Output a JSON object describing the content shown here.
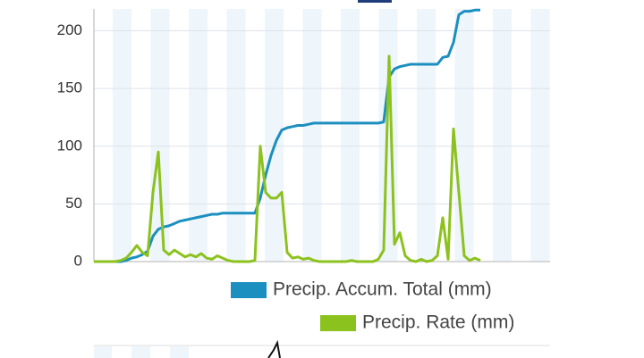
{
  "chart_data": {
    "type": "line",
    "series": [
      {
        "name": "Precip. Accum. Total (mm)",
        "color": "#1b8fc0",
        "values": [
          0,
          0,
          0,
          0,
          0,
          0,
          1,
          3,
          4,
          6,
          9,
          22,
          28,
          30,
          31,
          33,
          35,
          36,
          37,
          38,
          39,
          40,
          41,
          41,
          42,
          42,
          42,
          42,
          42,
          42,
          42,
          55,
          75,
          92,
          105,
          114,
          116,
          117,
          118,
          118,
          119,
          120,
          120,
          120,
          120,
          120,
          120,
          120,
          120,
          120,
          120,
          120,
          120,
          120,
          121,
          160,
          167,
          169,
          170,
          171,
          171,
          171,
          171,
          171,
          171,
          177,
          178,
          190,
          214,
          217,
          217,
          218,
          218,
          null,
          null,
          null,
          null,
          null,
          null,
          null,
          null,
          null,
          null,
          null,
          null,
          null
        ]
      },
      {
        "name": "Precip. Rate (mm)",
        "color": "#8cc21e",
        "values": [
          0,
          0,
          0,
          0,
          0,
          1,
          3,
          8,
          14,
          8,
          5,
          60,
          95,
          10,
          6,
          10,
          7,
          4,
          6,
          4,
          7,
          3,
          2,
          5,
          3,
          1,
          0,
          0,
          0,
          0,
          1,
          100,
          60,
          55,
          55,
          60,
          8,
          3,
          4,
          2,
          3,
          1,
          0,
          0,
          0,
          0,
          0,
          0,
          1,
          0,
          0,
          0,
          0,
          2,
          10,
          178,
          15,
          25,
          5,
          1,
          0,
          2,
          0,
          1,
          5,
          38,
          2,
          115,
          60,
          5,
          1,
          3,
          1,
          null,
          null,
          null,
          null,
          null,
          null,
          null,
          null,
          null,
          null,
          null,
          null,
          null
        ]
      }
    ],
    "ylim": [
      0,
      219
    ],
    "yticks": [
      0,
      50,
      100,
      150,
      200
    ],
    "grid": true
  }
}
